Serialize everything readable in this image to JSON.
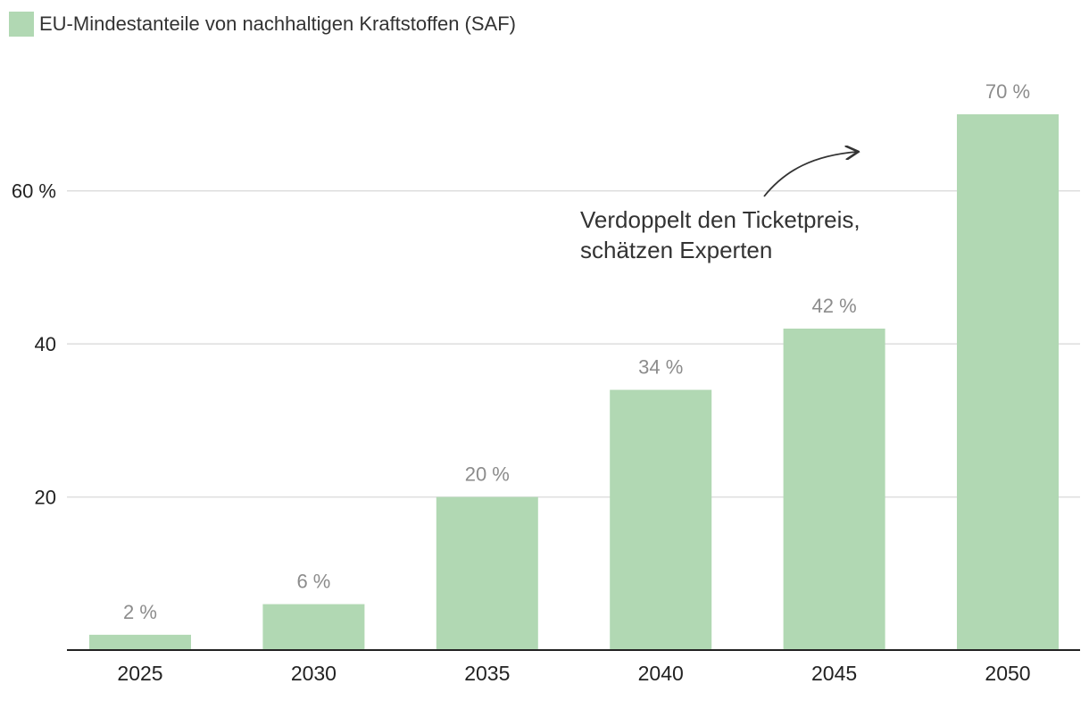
{
  "chart_data": {
    "type": "bar",
    "categories": [
      "2025",
      "2030",
      "2035",
      "2040",
      "2045",
      "2050"
    ],
    "series": [
      {
        "name": "EU-Mindestanteile von nachhaltigen Kraftstoffen (SAF)",
        "values": [
          2,
          6,
          20,
          34,
          42,
          70
        ],
        "labels": [
          "2 %",
          "6 %",
          "20 %",
          "34 %",
          "42 %",
          "70 %"
        ],
        "color": "#b1d8b3"
      }
    ],
    "legend": {
      "label": "EU-Mindestanteile von nachhaltigen Kraftstoffen (SAF)",
      "placement": "top-left"
    },
    "y_ticks": [
      {
        "value": 60,
        "label": "60 %"
      },
      {
        "value": 40,
        "label": "40"
      },
      {
        "value": 20,
        "label": "20"
      }
    ],
    "ylim": [
      0,
      70
    ],
    "grid": true,
    "annotation": {
      "lines": [
        "Verdoppelt den Ticketpreis,",
        "schätzen Experten"
      ],
      "arrow_points_to": "2050"
    },
    "title": "",
    "xlabel": "",
    "ylabel": ""
  }
}
